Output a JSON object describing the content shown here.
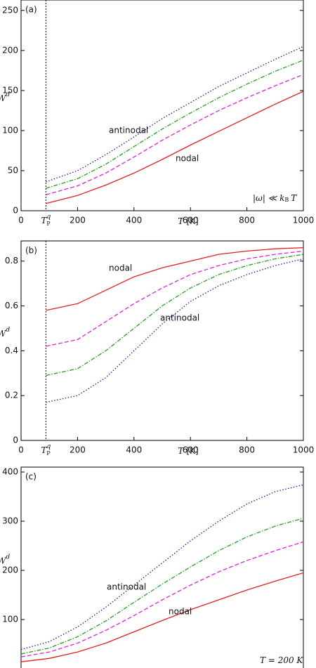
{
  "chart_data": [
    {
      "type": "line",
      "panel_label": "(a)",
      "y_label": {
        "base": "W",
        "sup": "d"
      },
      "x_label": {
        "var": "T",
        "unit": "[K]"
      },
      "x": [
        88,
        200,
        300,
        400,
        500,
        600,
        700,
        800,
        900,
        1000
      ],
      "xlim": [
        0,
        1000
      ],
      "xticks": [
        0,
        200,
        400,
        600,
        800,
        1000
      ],
      "ylim": [
        0,
        263
      ],
      "yticks": [
        0,
        50,
        100,
        150,
        200,
        250
      ],
      "marker_x": {
        "value": 88,
        "label": {
          "base": "T",
          "sub": "P",
          "sup": "q"
        }
      },
      "series": [
        {
          "color": "#1c1ca8",
          "dash": "1.5 2.5",
          "values": [
            36,
            50,
            70,
            92,
            115,
            135,
            155,
            172,
            189,
            205
          ]
        },
        {
          "color": "#24a024",
          "dash": "6 2 1.5 2",
          "values": [
            28,
            40,
            58,
            80,
            102,
            122,
            141,
            158,
            174,
            188
          ]
        },
        {
          "color": "#e020e0",
          "dash": "6 3",
          "values": [
            20,
            31,
            47,
            67,
            88,
            107,
            125,
            141,
            156,
            170
          ]
        },
        {
          "color": "#e02020",
          "dash": "none",
          "values": [
            9,
            19,
            32,
            47,
            64,
            82,
            99,
            116,
            133,
            149
          ]
        }
      ],
      "annotations": [
        {
          "text": "antinodal"
        },
        {
          "text": "nodal"
        }
      ],
      "condition": {
        "a": "|ω| ≪ k",
        "sub": "B",
        "b": "T"
      }
    },
    {
      "type": "line",
      "panel_label": "(b)",
      "y_label": {
        "base": "W",
        "sup": "d"
      },
      "x_label": {
        "var": "T",
        "unit": "[K]"
      },
      "x": [
        88,
        200,
        300,
        400,
        500,
        600,
        700,
        800,
        900,
        1000
      ],
      "xlim": [
        0,
        1000
      ],
      "xticks": [
        0,
        200,
        400,
        600,
        800,
        1000
      ],
      "ylim": [
        0,
        0.89
      ],
      "yticks": [
        0,
        0.2,
        0.4,
        0.6,
        0.8
      ],
      "marker_x": {
        "value": 88,
        "label": {
          "base": "T",
          "sub": "P",
          "sup": "q"
        }
      },
      "series": [
        {
          "color": "#e02020",
          "dash": "none",
          "values": [
            0.58,
            0.61,
            0.67,
            0.73,
            0.77,
            0.8,
            0.83,
            0.845,
            0.855,
            0.86
          ]
        },
        {
          "color": "#e020e0",
          "dash": "6 3",
          "values": [
            0.42,
            0.45,
            0.53,
            0.61,
            0.68,
            0.74,
            0.78,
            0.81,
            0.83,
            0.845
          ]
        },
        {
          "color": "#24a024",
          "dash": "6 2 1.5 2",
          "values": [
            0.29,
            0.32,
            0.4,
            0.5,
            0.6,
            0.68,
            0.74,
            0.78,
            0.81,
            0.83
          ]
        },
        {
          "color": "#1c1ca8",
          "dash": "1.5 2.5",
          "values": [
            0.17,
            0.2,
            0.28,
            0.4,
            0.52,
            0.62,
            0.69,
            0.74,
            0.78,
            0.81
          ]
        }
      ],
      "annotations": [
        {
          "text": "nodal"
        },
        {
          "text": "antinodal"
        }
      ]
    },
    {
      "type": "line",
      "panel_label": "(c)",
      "y_label": {
        "base": "W",
        "sup": "d"
      },
      "x": [
        0,
        0.1,
        0.2,
        0.3,
        0.4,
        0.5,
        0.6,
        0.7,
        0.8,
        0.9,
        1
      ],
      "xlim": [
        0,
        1
      ],
      "ylim": [
        0,
        410
      ],
      "yticks": [
        100,
        200,
        300,
        400
      ],
      "series": [
        {
          "color": "#1c1ca8",
          "dash": "1.5 2.5",
          "values": [
            39,
            55,
            85,
            125,
            170,
            215,
            260,
            300,
            335,
            360,
            374
          ]
        },
        {
          "color": "#24a024",
          "dash": "6 2 1.5 2",
          "values": [
            30,
            42,
            65,
            97,
            135,
            172,
            207,
            240,
            268,
            290,
            306
          ]
        },
        {
          "color": "#e020e0",
          "dash": "6 3",
          "values": [
            24,
            34,
            52,
            78,
            108,
            140,
            170,
            197,
            220,
            240,
            258
          ]
        },
        {
          "color": "#e02020",
          "dash": "none",
          "values": [
            14,
            21,
            34,
            52,
            75,
            98,
            120,
            140,
            160,
            178,
            195
          ]
        }
      ],
      "annotations": [
        {
          "text": "antinodal"
        },
        {
          "text": "nodal"
        }
      ],
      "condition": {
        "a": "T = 200 K"
      }
    }
  ]
}
